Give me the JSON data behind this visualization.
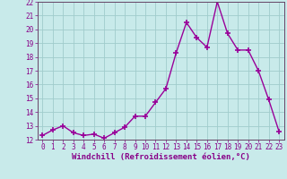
{
  "x": [
    0,
    1,
    2,
    3,
    4,
    5,
    6,
    7,
    8,
    9,
    10,
    11,
    12,
    13,
    14,
    15,
    16,
    17,
    18,
    19,
    20,
    21,
    22,
    23
  ],
  "y": [
    12.3,
    12.7,
    13.0,
    12.5,
    12.3,
    12.4,
    12.1,
    12.5,
    12.9,
    13.7,
    13.7,
    14.7,
    15.7,
    18.3,
    20.5,
    19.4,
    18.7,
    22.0,
    19.7,
    18.5,
    18.5,
    17.0,
    14.9,
    12.6
  ],
  "line_color": "#990099",
  "marker": "+",
  "marker_size": 4,
  "linewidth": 1.0,
  "xlabel": "Windchill (Refroidissement éolien,°C)",
  "xlabel_fontsize": 6.5,
  "background_color": "#c8eaea",
  "grid_color": "#a0cccc",
  "ylim": [
    12,
    22
  ],
  "xlim": [
    -0.5,
    23.5
  ],
  "yticks": [
    12,
    13,
    14,
    15,
    16,
    17,
    18,
    19,
    20,
    21,
    22
  ],
  "xticks": [
    0,
    1,
    2,
    3,
    4,
    5,
    6,
    7,
    8,
    9,
    10,
    11,
    12,
    13,
    14,
    15,
    16,
    17,
    18,
    19,
    20,
    21,
    22,
    23
  ],
  "tick_fontsize": 5.5,
  "label_color": "#880088"
}
